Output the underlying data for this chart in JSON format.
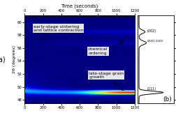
{
  "title": "Time (seconds)",
  "ylabel": "2θ (degrees)",
  "x_ticks": [
    0,
    200,
    400,
    600,
    800,
    1000,
    1200
  ],
  "y_min": 47.5,
  "y_max": 61.0,
  "x_min": 0,
  "x_max": 1200,
  "label_a": "(a)",
  "label_b": "(b)",
  "yticks": [
    48,
    50,
    52,
    54,
    56,
    58,
    60
  ],
  "peak_111_y": 49.2,
  "peak_002_y": 58.5,
  "peak_200_y": 56.8,
  "annot_fontsize": 4.5
}
